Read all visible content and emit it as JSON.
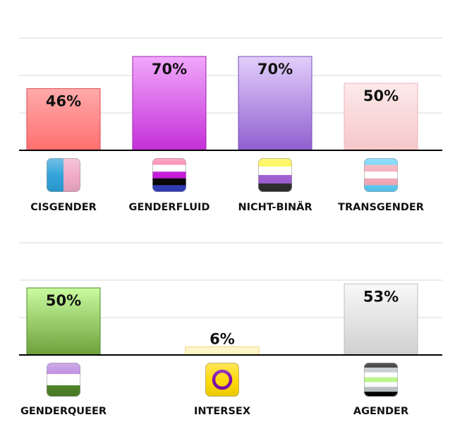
{
  "chart_data": [
    {
      "type": "bar",
      "ylim": [
        0,
        100
      ],
      "grid": true,
      "categories": [
        "CISGENDER",
        "GENDERFLUID",
        "NICHT-BINÄR",
        "TRANSGENDER"
      ],
      "values": [
        46,
        70,
        70,
        50
      ],
      "value_labels": [
        "46%",
        "70%",
        "70%",
        "50%"
      ],
      "icons": [
        "cisgender-flag-icon",
        "genderfluid-flag-icon",
        "nonbinary-flag-icon",
        "transgender-flag-icon"
      ],
      "bar_colors": [
        [
          "#ffaaaa",
          "#ff6f6f"
        ],
        [
          "#f1a8fb",
          "#c42fd8"
        ],
        [
          "#e2cefb",
          "#8f5fcf"
        ],
        [
          "#fdeaea",
          "#f6c6c9"
        ]
      ],
      "bar_borders": [
        "#d94a50",
        "#a021b5",
        "#7a4cb8",
        "#eeb4bb"
      ]
    },
    {
      "type": "bar",
      "ylim": [
        0,
        100
      ],
      "grid": true,
      "categories": [
        "GENDERQUEER",
        "INTERSEX",
        "AGENDER"
      ],
      "values": [
        50,
        6,
        53
      ],
      "value_labels": [
        "50%",
        "6%",
        "53%"
      ],
      "icons": [
        "genderqueer-flag-icon",
        "intersex-flag-icon",
        "agender-flag-icon"
      ],
      "bar_colors": [
        [
          "#c9fba0",
          "#6da03a"
        ],
        [
          "#fff9d8",
          "#fff3b8"
        ],
        [
          "#f8f8f8",
          "#d0d0d0"
        ]
      ],
      "bar_borders": [
        "#4c8a2a",
        "#f2d36b",
        "#bdbdbd"
      ]
    }
  ]
}
